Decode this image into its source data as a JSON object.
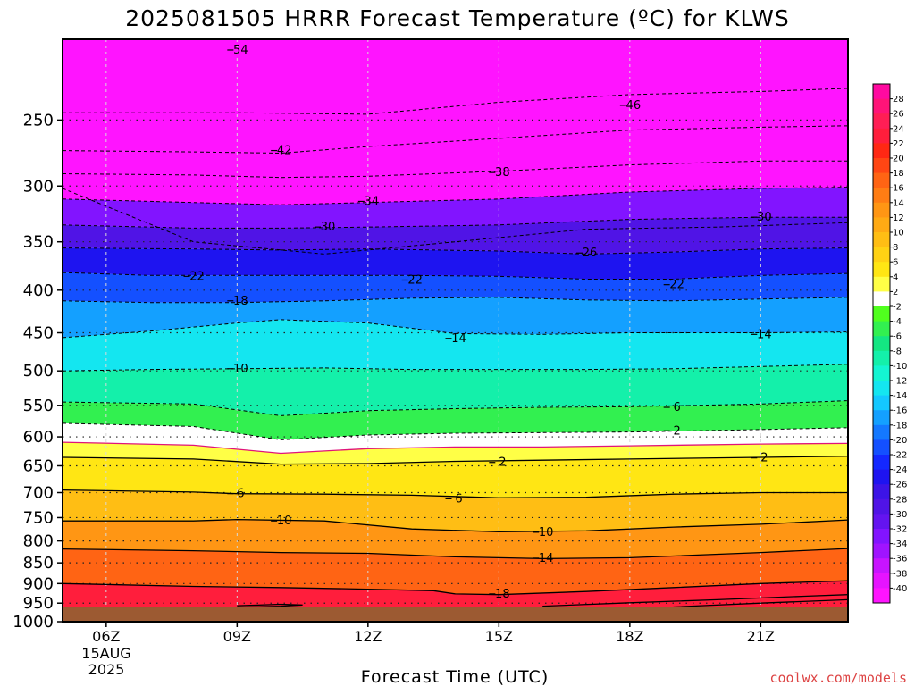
{
  "chart_data": {
    "type": "heatmap",
    "title": "2025081505 HRRR Forecast Temperature (ºC) for KLWS",
    "xlabel": "Forecast Time (UTC)",
    "ylabel": "",
    "date_label": [
      "15AUG",
      "2025"
    ],
    "x_ticks": [
      "06Z",
      "09Z",
      "12Z",
      "15Z",
      "18Z",
      "21Z"
    ],
    "x_hours": [
      6,
      9,
      12,
      15,
      18,
      21
    ],
    "xlim": [
      5,
      23
    ],
    "y_ticks": [
      250,
      300,
      350,
      400,
      450,
      500,
      550,
      600,
      650,
      700,
      750,
      800,
      850,
      900,
      950,
      1000
    ],
    "ylim": [
      1000,
      200
    ],
    "colorbar": {
      "labels": [
        "28",
        "26",
        "24",
        "22",
        "20",
        "18",
        "16",
        "14",
        "12",
        "10",
        "8",
        "6",
        "4",
        "2",
        "-2",
        "-4",
        "-6",
        "-8",
        "-10",
        "-12",
        "-14",
        "-16",
        "-18",
        "-20",
        "-22",
        "-24",
        "-26",
        "-28",
        "-30",
        "-32",
        "-34",
        "-36",
        "-38",
        "-40"
      ],
      "colors": [
        "#ff0aa0",
        "#ff1478",
        "#ff1e55",
        "#ff1e3c",
        "#ff2814",
        "#ff4614",
        "#ff6414",
        "#ff7d14",
        "#ff9614",
        "#ffaa14",
        "#ffbe14",
        "#ffd214",
        "#ffe614",
        "#ffff46",
        "#ffffff",
        "#50ff1e",
        "#32f050",
        "#14e682",
        "#14f0aa",
        "#14f5d2",
        "#14e6f0",
        "#14c8ff",
        "#14a0ff",
        "#1478ff",
        "#1450ff",
        "#1428ff",
        "#1e14f0",
        "#3c14e6",
        "#5014e6",
        "#6414f0",
        "#8214ff",
        "#a014ff",
        "#c814ff",
        "#e614ff",
        "#ff14ff"
      ]
    },
    "contours": [
      {
        "value": -54,
        "label": "54",
        "style": "dashed",
        "points": [
          [
            5,
            302
          ],
          [
            8,
            350
          ],
          [
            11,
            362
          ],
          [
            14,
            350
          ],
          [
            17,
            338
          ],
          [
            20,
            336
          ],
          [
            23,
            332
          ]
        ]
      },
      {
        "value": -46,
        "label": "46",
        "style": "dashed",
        "points": [
          [
            5,
            245
          ],
          [
            9,
            245
          ],
          [
            12,
            246
          ],
          [
            15,
            238
          ],
          [
            18,
            233
          ],
          [
            21,
            231
          ],
          [
            23,
            229
          ]
        ]
      },
      {
        "value": -42,
        "label": "42",
        "style": "dashed",
        "points": [
          [
            5,
            272
          ],
          [
            8,
            273
          ],
          [
            10,
            274
          ],
          [
            12,
            269
          ],
          [
            15,
            263
          ],
          [
            18,
            257
          ],
          [
            21,
            255
          ],
          [
            23,
            254
          ]
        ]
      },
      {
        "value": -38,
        "label": "38",
        "style": "dashed",
        "points": [
          [
            5,
            290
          ],
          [
            8,
            291
          ],
          [
            10,
            293
          ],
          [
            12,
            292
          ],
          [
            15,
            288
          ],
          [
            18,
            283
          ],
          [
            21,
            280
          ],
          [
            23,
            280
          ]
        ]
      },
      {
        "value": -34,
        "label": "34",
        "style": "dashed",
        "points": [
          [
            5,
            311
          ],
          [
            8,
            314
          ],
          [
            10,
            316
          ],
          [
            12,
            314
          ],
          [
            15,
            311
          ],
          [
            18,
            305
          ],
          [
            21,
            302
          ],
          [
            23,
            301
          ]
        ]
      },
      {
        "value": -30,
        "label": "30",
        "style": "dashed",
        "points": [
          [
            5,
            334
          ],
          [
            8,
            337
          ],
          [
            10,
            337
          ],
          [
            12,
            336
          ],
          [
            15,
            334
          ],
          [
            18,
            329
          ],
          [
            21,
            327
          ],
          [
            23,
            327
          ]
        ]
      },
      {
        "value": -26,
        "label": "26",
        "style": "dashed",
        "points": [
          [
            5,
            356
          ],
          [
            8,
            357
          ],
          [
            10,
            358
          ],
          [
            12,
            357
          ],
          [
            15,
            359
          ],
          [
            17,
            362
          ],
          [
            19,
            360
          ],
          [
            21,
            357
          ],
          [
            23,
            356
          ]
        ]
      },
      {
        "value": -22,
        "label": "22",
        "style": "dashed",
        "points": [
          [
            5,
            381
          ],
          [
            7,
            384
          ],
          [
            9,
            384
          ],
          [
            11,
            384
          ],
          [
            13,
            384
          ],
          [
            15,
            385
          ],
          [
            17,
            388
          ],
          [
            19,
            388
          ],
          [
            21,
            384
          ],
          [
            23,
            382
          ]
        ]
      },
      {
        "value": -18,
        "label": "18",
        "style": "dashed",
        "points": [
          [
            5,
            412
          ],
          [
            7,
            414
          ],
          [
            9,
            414
          ],
          [
            11,
            412
          ],
          [
            13,
            409
          ],
          [
            15,
            408
          ],
          [
            17,
            411
          ],
          [
            19,
            412
          ],
          [
            21,
            410
          ],
          [
            23,
            408
          ]
        ]
      },
      {
        "value": -14,
        "label": "14",
        "style": "dashed",
        "points": [
          [
            5,
            456
          ],
          [
            7,
            448
          ],
          [
            9,
            438
          ],
          [
            10,
            434
          ],
          [
            12,
            438
          ],
          [
            14,
            451
          ],
          [
            16,
            452
          ],
          [
            18,
            450
          ],
          [
            21,
            450
          ],
          [
            23,
            449
          ]
        ]
      },
      {
        "value": -10,
        "label": "10",
        "style": "dashed",
        "points": [
          [
            5,
            500
          ],
          [
            7,
            498
          ],
          [
            9,
            497
          ],
          [
            11,
            496
          ],
          [
            13,
            498
          ],
          [
            15,
            498
          ],
          [
            17,
            498
          ],
          [
            19,
            497
          ],
          [
            21,
            494
          ],
          [
            23,
            491
          ]
        ]
      },
      {
        "value": -6,
        "label": "6",
        "style": "dashed",
        "points": [
          [
            5,
            545
          ],
          [
            8,
            548
          ],
          [
            10,
            566
          ],
          [
            12,
            558
          ],
          [
            14,
            555
          ],
          [
            16,
            553
          ],
          [
            18,
            552
          ],
          [
            21,
            548
          ],
          [
            23,
            543
          ]
        ]
      },
      {
        "value": -2,
        "label": "2",
        "style": "dashed",
        "points": [
          [
            5,
            578
          ],
          [
            8,
            583
          ],
          [
            10,
            605
          ],
          [
            12,
            597
          ],
          [
            14,
            594
          ],
          [
            16,
            593
          ],
          [
            18,
            592
          ],
          [
            21,
            588
          ],
          [
            23,
            585
          ]
        ]
      },
      {
        "value": 0,
        "label": "",
        "style": "magenta",
        "points": [
          [
            5,
            609
          ],
          [
            8,
            614
          ],
          [
            10,
            628
          ],
          [
            12,
            620
          ],
          [
            14,
            617
          ],
          [
            16,
            617
          ],
          [
            18,
            615
          ],
          [
            21,
            612
          ],
          [
            23,
            611
          ]
        ]
      },
      {
        "value": 2,
        "label": "2",
        "style": "solid",
        "points": [
          [
            5,
            635
          ],
          [
            8,
            638
          ],
          [
            10,
            647
          ],
          [
            12,
            646
          ],
          [
            14,
            642
          ],
          [
            16,
            640
          ],
          [
            18,
            638
          ],
          [
            21,
            635
          ],
          [
            23,
            633
          ]
        ]
      },
      {
        "value": 6,
        "label": "6",
        "style": "solid",
        "points": [
          [
            5,
            695
          ],
          [
            8,
            699
          ],
          [
            9,
            702
          ],
          [
            11,
            703
          ],
          [
            13,
            705
          ],
          [
            15,
            710
          ],
          [
            17,
            709
          ],
          [
            19,
            703
          ],
          [
            21,
            700
          ],
          [
            23,
            700
          ]
        ]
      },
      {
        "value": 10,
        "label": "10",
        "style": "solid",
        "points": [
          [
            5,
            757
          ],
          [
            8,
            757
          ],
          [
            9,
            754
          ],
          [
            11,
            757
          ],
          [
            13,
            774
          ],
          [
            15,
            780
          ],
          [
            17,
            778
          ],
          [
            19,
            770
          ],
          [
            21,
            764
          ],
          [
            23,
            755
          ]
        ]
      },
      {
        "value": 14,
        "label": "14",
        "style": "solid",
        "points": [
          [
            5,
            818
          ],
          [
            8,
            822
          ],
          [
            10,
            826
          ],
          [
            12,
            828
          ],
          [
            14,
            836
          ],
          [
            16,
            840
          ],
          [
            18,
            838
          ],
          [
            21,
            826
          ],
          [
            23,
            817
          ]
        ]
      },
      {
        "value": 18,
        "label": "18",
        "style": "solid",
        "points": [
          [
            5,
            900
          ],
          [
            8,
            907
          ],
          [
            10,
            910
          ],
          [
            12,
            914
          ],
          [
            13.5,
            918
          ],
          [
            14,
            926
          ],
          [
            15,
            928
          ],
          [
            17,
            920
          ],
          [
            19,
            910
          ],
          [
            21,
            900
          ],
          [
            23,
            893
          ]
        ]
      },
      {
        "value": 22,
        "label": "",
        "style": "solid",
        "points": [
          [
            9,
            957
          ],
          [
            10,
            953
          ],
          [
            10.5,
            955
          ],
          [
            10,
            958
          ],
          [
            9,
            961
          ]
        ]
      },
      {
        "value": 22,
        "label": "",
        "style": "solid",
        "points": [
          [
            16,
            958
          ],
          [
            18,
            949
          ],
          [
            20,
            941
          ],
          [
            22,
            932
          ],
          [
            23,
            928
          ]
        ]
      },
      {
        "value": 22,
        "label": "",
        "style": "solid",
        "points": [
          [
            19,
            960
          ],
          [
            21,
            950
          ],
          [
            23,
            941
          ]
        ]
      }
    ],
    "contour_labels": [
      {
        "text": "54",
        "x": 9,
        "y": 206
      },
      {
        "text": "46",
        "x": 18,
        "y": 240
      },
      {
        "text": "42",
        "x": 10,
        "y": 272
      },
      {
        "text": "38",
        "x": 15,
        "y": 289
      },
      {
        "text": "34",
        "x": 12,
        "y": 313
      },
      {
        "text": "30",
        "x": 11,
        "y": 336
      },
      {
        "text": "30",
        "x": 21,
        "y": 327
      },
      {
        "text": "26",
        "x": 17,
        "y": 361
      },
      {
        "text": "22",
        "x": 8,
        "y": 385
      },
      {
        "text": "22",
        "x": 13,
        "y": 389
      },
      {
        "text": "22",
        "x": 19,
        "y": 394
      },
      {
        "text": "18",
        "x": 9,
        "y": 412
      },
      {
        "text": "14",
        "x": 14,
        "y": 457
      },
      {
        "text": "14",
        "x": 21,
        "y": 452
      },
      {
        "text": "10",
        "x": 9,
        "y": 497
      },
      {
        "text": "6",
        "x": 19,
        "y": 553
      },
      {
        "text": "2",
        "x": 19,
        "y": 590
      },
      {
        "text": "2",
        "x": 15,
        "y": 644
      },
      {
        "text": "2",
        "x": 21,
        "y": 636
      },
      {
        "text": "6",
        "x": 9,
        "y": 702
      },
      {
        "text": "6",
        "x": 14,
        "y": 712
      },
      {
        "text": "10",
        "x": 10,
        "y": 757
      },
      {
        "text": "10",
        "x": 16,
        "y": 781
      },
      {
        "text": "14",
        "x": 16,
        "y": 839
      },
      {
        "text": "18",
        "x": 15,
        "y": 926
      }
    ],
    "ground_pressure": 960
  },
  "credit": "coolwx.com/models"
}
